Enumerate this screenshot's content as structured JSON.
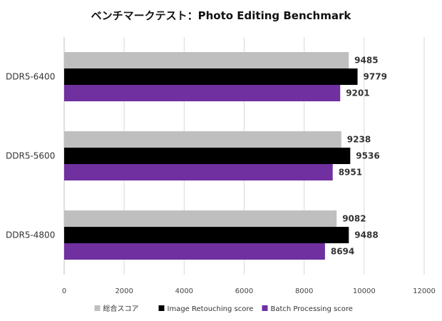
{
  "chart_data": {
    "type": "bar",
    "orientation": "horizontal",
    "title": "ベンチマークテスト：Photo Editing Benchmark",
    "xlabel": "",
    "ylabel": "",
    "categories": [
      "DDR5-6400",
      "DDR5-5600",
      "DDR5-4800"
    ],
    "series": [
      {
        "name": "総合スコア",
        "color": "#bfbfbf",
        "values": [
          9485,
          9238,
          9082
        ]
      },
      {
        "name": "Image Retouching score",
        "color": "#000000",
        "values": [
          9779,
          9536,
          9488
        ]
      },
      {
        "name": "Batch Processing score",
        "color": "#7030a0",
        "values": [
          9201,
          8951,
          8694
        ]
      }
    ],
    "xlim": [
      0,
      12000
    ],
    "xticks": [
      0,
      2000,
      4000,
      6000,
      8000,
      10000,
      12000
    ],
    "grid": true,
    "legend_position": "bottom"
  }
}
